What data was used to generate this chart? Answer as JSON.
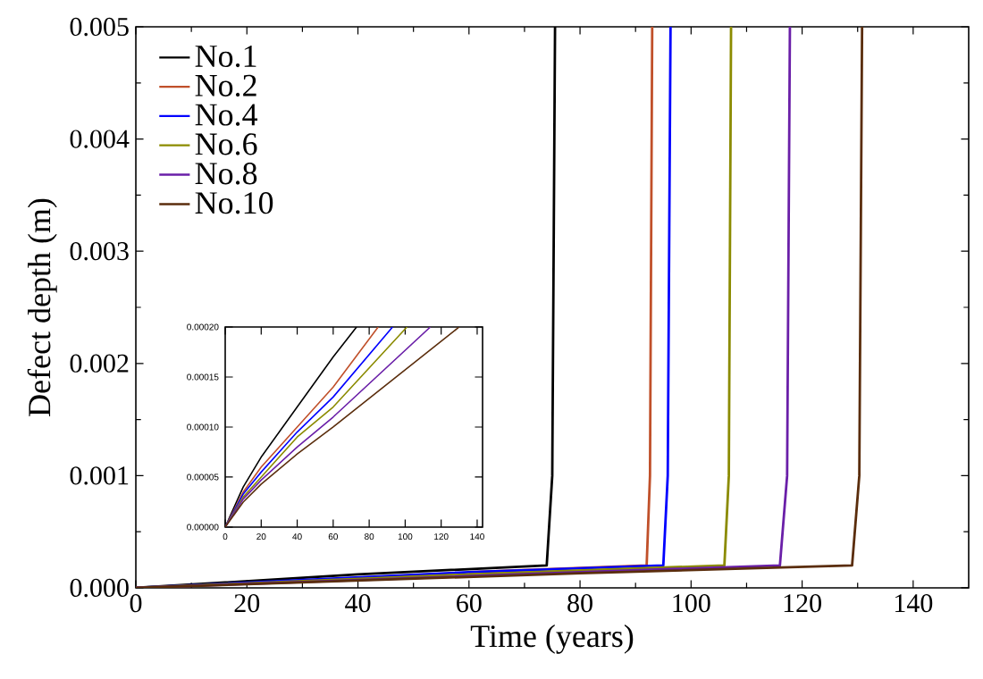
{
  "chart_data": [
    {
      "type": "line",
      "xlabel": "Time (years)",
      "ylabel": "Defect depth (m)",
      "legend": "top left",
      "xlim": [
        0,
        150
      ],
      "ylim": [
        0,
        0.005
      ],
      "xticks": [
        0,
        20,
        40,
        60,
        80,
        100,
        120,
        140
      ],
      "yticks": [
        {
          "value": 0,
          "label": "0.000"
        },
        {
          "value": 0.001,
          "label": "0.001"
        },
        {
          "value": 0.002,
          "label": "0.002"
        },
        {
          "value": 0.003,
          "label": "0.003"
        },
        {
          "value": 0.004,
          "label": "0.004"
        },
        {
          "value": 0.005,
          "label": "0.005"
        }
      ],
      "series": [
        {
          "name": "No.1",
          "color": "#000000",
          "x": [
            0,
            40,
            74,
            75,
            75.5
          ],
          "values": [
            0,
            0.00012,
            0.0002,
            0.001,
            0.005
          ]
        },
        {
          "name": "No.2",
          "color": "#c0502a",
          "x": [
            60,
            92,
            92.6,
            93
          ],
          "values": [
            0.00014,
            0.0002,
            0.001,
            0.005
          ]
        },
        {
          "name": "No.4",
          "color": "#0000ff",
          "x": [
            0,
            60,
            95,
            95.8,
            96.3
          ],
          "values": [
            0,
            0.00014,
            0.0002,
            0.001,
            0.005
          ]
        },
        {
          "name": "No.6",
          "color": "#8b8b00",
          "x": [
            0,
            60,
            106,
            106.8,
            107.2
          ],
          "values": [
            0,
            0.00012,
            0.0002,
            0.001,
            0.005
          ]
        },
        {
          "name": "No.8",
          "color": "#6a1fa8",
          "x": [
            0,
            80,
            116,
            117.3,
            117.8
          ],
          "values": [
            0,
            0.00014,
            0.0002,
            0.001,
            0.005
          ]
        },
        {
          "name": "No.10",
          "color": "#5a2d0c",
          "x": [
            0,
            80,
            129,
            130.3,
            130.8
          ],
          "values": [
            0,
            0.00013,
            0.0002,
            0.001,
            0.005
          ]
        }
      ]
    },
    {
      "type": "line",
      "xlim": [
        0,
        143
      ],
      "ylim": [
        0,
        0.0002
      ],
      "xticks": [
        0,
        20,
        40,
        60,
        80,
        100,
        120,
        140
      ],
      "yticks": [
        {
          "value": 0,
          "label": "0.00000"
        },
        {
          "value": 5e-05,
          "label": "0.00005"
        },
        {
          "value": 0.0001,
          "label": "0.00010"
        },
        {
          "value": 0.00015,
          "label": "0.00015"
        },
        {
          "value": 0.0002,
          "label": "0.00020"
        }
      ],
      "series": [
        {
          "color": "#000000",
          "x": [
            0,
            10,
            20,
            40,
            60,
            73
          ],
          "values": [
            0,
            4e-05,
            7e-05,
            0.00012,
            0.00017,
            0.0002
          ]
        },
        {
          "color": "#c0502a",
          "x": [
            0,
            10,
            20,
            40,
            60,
            85
          ],
          "values": [
            0,
            3.5e-05,
            6e-05,
            0.0001,
            0.00014,
            0.0002
          ]
        },
        {
          "color": "#0000ff",
          "x": [
            0,
            10,
            20,
            40,
            60,
            93
          ],
          "values": [
            0,
            3.3e-05,
            5.5e-05,
            9.5e-05,
            0.00013,
            0.0002
          ]
        },
        {
          "color": "#8b8b00",
          "x": [
            0,
            10,
            20,
            40,
            60,
            101
          ],
          "values": [
            0,
            3e-05,
            5e-05,
            9e-05,
            0.00012,
            0.0002
          ]
        },
        {
          "color": "#6a1fa8",
          "x": [
            0,
            10,
            20,
            40,
            60,
            114
          ],
          "values": [
            0,
            2.8e-05,
            4.7e-05,
            8e-05,
            0.00011,
            0.0002
          ]
        },
        {
          "color": "#5a2d0c",
          "x": [
            0,
            10,
            20,
            40,
            60,
            130
          ],
          "values": [
            0,
            2.5e-05,
            4.3e-05,
            7.3e-05,
            0.0001,
            0.0002
          ]
        }
      ]
    }
  ]
}
